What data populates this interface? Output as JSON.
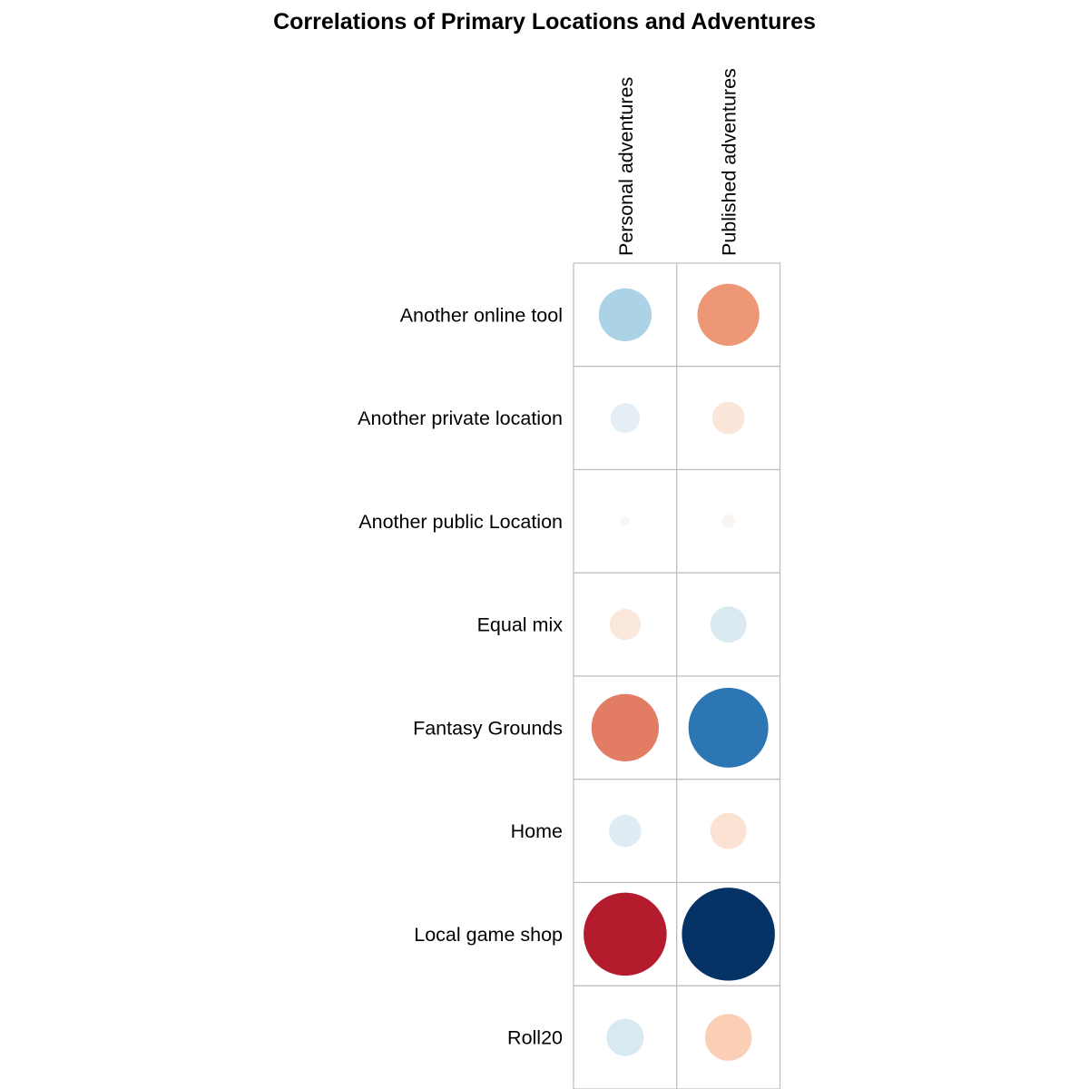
{
  "chart_data": {
    "type": "heatmap",
    "title": "Correlations of Primary Locations and Adventures",
    "columns": [
      "Personal adventures",
      "Published adventures"
    ],
    "rows": [
      "Another online tool",
      "Another private location",
      "Another public Location",
      "Equal mix",
      "Fantasy Grounds",
      "Home",
      "Local game shop",
      "Roll20"
    ],
    "values": [
      [
        -0.32,
        0.44
      ],
      [
        -0.1,
        0.12
      ],
      [
        -0.01,
        0.02
      ],
      [
        0.11,
        -0.15
      ],
      [
        0.52,
        -0.73
      ],
      [
        -0.12,
        0.15
      ],
      [
        0.79,
        -0.99
      ],
      [
        -0.16,
        0.25
      ]
    ],
    "value_range": [
      -1,
      1
    ],
    "colors": {
      "grid": "#bdbdbd",
      "scale": [
        "#053061",
        "#2166ac",
        "#4393c3",
        "#92c5de",
        "#d1e5f0",
        "#f7f7f7",
        "#fddbc7",
        "#f4a582",
        "#d6604d",
        "#b2182b",
        "#67001f"
      ]
    }
  }
}
